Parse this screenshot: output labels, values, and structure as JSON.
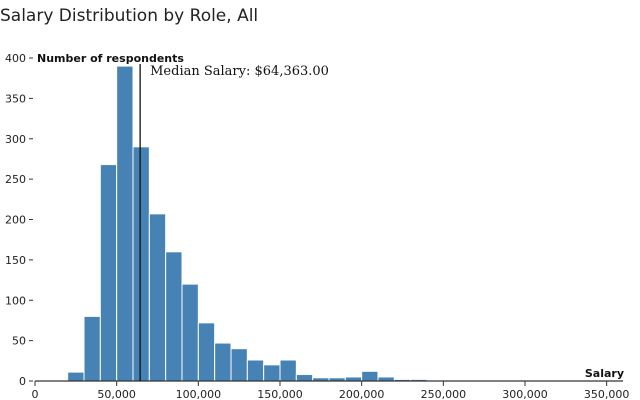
{
  "chart_data": {
    "type": "bar",
    "title": "Salary Distribution by Role, All",
    "xlabel": "Salary",
    "ylabel": "Number of respondents",
    "bin_width": 10000,
    "xlim": [
      0,
      360000
    ],
    "ylim": [
      0,
      400
    ],
    "x_ticks": [
      0,
      50000,
      100000,
      150000,
      200000,
      250000,
      300000,
      350000
    ],
    "x_tick_labels": [
      "0",
      "50,000",
      "100,000",
      "150,000",
      "200,000",
      "250,000",
      "300,000",
      "350,000"
    ],
    "y_ticks": [
      0,
      50,
      100,
      150,
      200,
      250,
      300,
      350,
      400
    ],
    "y_tick_labels": [
      "0",
      "50",
      "100",
      "150",
      "200",
      "250",
      "300",
      "350",
      "400"
    ],
    "bins": [
      {
        "x0": 20000,
        "x1": 30000,
        "count": 11
      },
      {
        "x0": 30000,
        "x1": 40000,
        "count": 80
      },
      {
        "x0": 40000,
        "x1": 50000,
        "count": 268
      },
      {
        "x0": 50000,
        "x1": 60000,
        "count": 390
      },
      {
        "x0": 60000,
        "x1": 70000,
        "count": 290
      },
      {
        "x0": 70000,
        "x1": 80000,
        "count": 207
      },
      {
        "x0": 80000,
        "x1": 90000,
        "count": 160
      },
      {
        "x0": 90000,
        "x1": 100000,
        "count": 120
      },
      {
        "x0": 100000,
        "x1": 110000,
        "count": 72
      },
      {
        "x0": 110000,
        "x1": 120000,
        "count": 47
      },
      {
        "x0": 120000,
        "x1": 130000,
        "count": 40
      },
      {
        "x0": 130000,
        "x1": 140000,
        "count": 26
      },
      {
        "x0": 140000,
        "x1": 150000,
        "count": 20
      },
      {
        "x0": 150000,
        "x1": 160000,
        "count": 26
      },
      {
        "x0": 160000,
        "x1": 170000,
        "count": 8
      },
      {
        "x0": 170000,
        "x1": 180000,
        "count": 4
      },
      {
        "x0": 180000,
        "x1": 190000,
        "count": 4
      },
      {
        "x0": 190000,
        "x1": 200000,
        "count": 5
      },
      {
        "x0": 200000,
        "x1": 210000,
        "count": 12
      },
      {
        "x0": 210000,
        "x1": 220000,
        "count": 5
      },
      {
        "x0": 220000,
        "x1": 230000,
        "count": 2
      },
      {
        "x0": 230000,
        "x1": 240000,
        "count": 2
      },
      {
        "x0": 240000,
        "x1": 250000,
        "count": 1
      },
      {
        "x0": 250000,
        "x1": 260000,
        "count": 1
      },
      {
        "x0": 260000,
        "x1": 270000,
        "count": 1
      },
      {
        "x0": 270000,
        "x1": 280000,
        "count": 1
      },
      {
        "x0": 290000,
        "x1": 300000,
        "count": 1
      },
      {
        "x0": 310000,
        "x1": 320000,
        "count": 1
      },
      {
        "x0": 340000,
        "x1": 350000,
        "count": 1
      }
    ],
    "median_value": 64363,
    "median_label": "Median Salary: $64,363.00",
    "bar_color": "#4682b4",
    "bar_stroke": "#ffffff",
    "axis_color": "#333333"
  }
}
